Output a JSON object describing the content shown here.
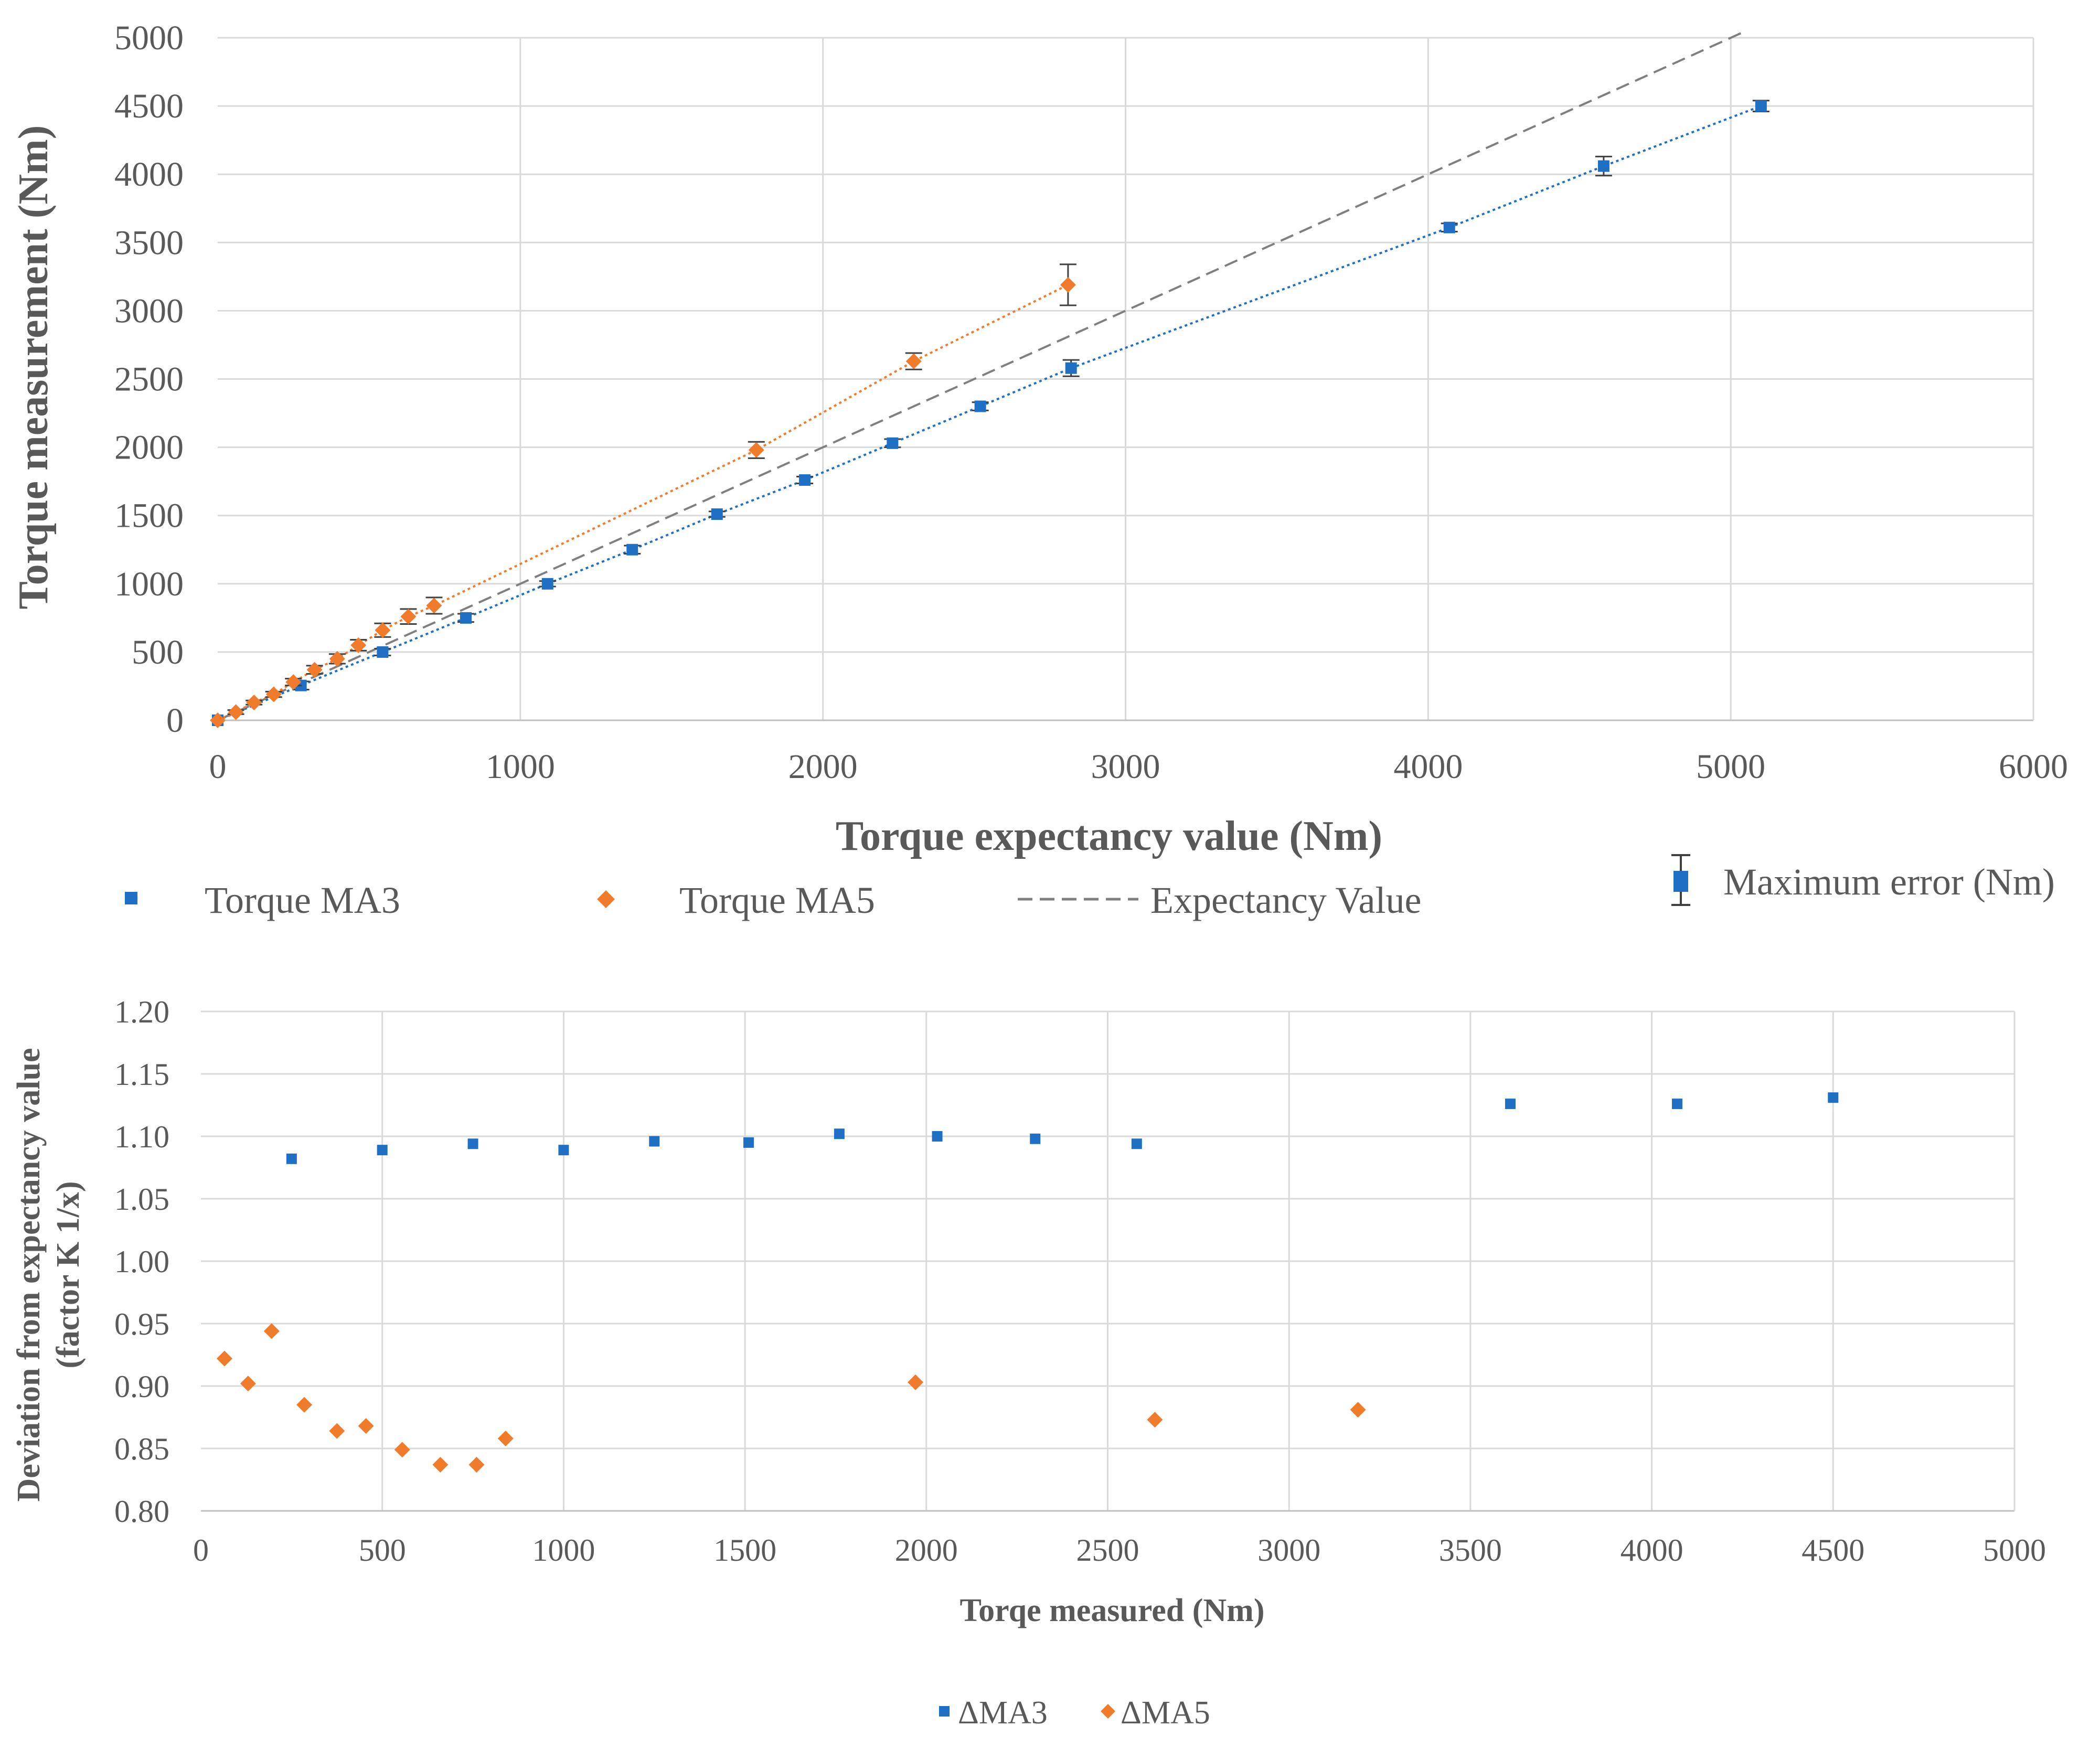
{
  "colors": {
    "ma3": "#1f6fc5",
    "ma5": "#f07b2a",
    "expectancy": "#7f7f7f",
    "errorbar": "#404040"
  },
  "chart_data": [
    {
      "type": "scatter",
      "xlabel": "Torque expectancy value (Nm)",
      "ylabel": "Torque measurement (Nm)",
      "xlim": [
        0,
        6000
      ],
      "ylim": [
        0,
        5000
      ],
      "xticks": [
        0,
        1000,
        2000,
        3000,
        4000,
        5000,
        6000
      ],
      "yticks": [
        0,
        500,
        1000,
        1500,
        2000,
        2500,
        3000,
        3500,
        4000,
        4500,
        5000
      ],
      "grid": true,
      "series": [
        {
          "name": "Torque MA3",
          "marker": "square",
          "x": [
            0,
            275,
            545,
            820,
            1090,
            1370,
            1650,
            1940,
            2230,
            2520,
            2820,
            4070,
            4580,
            5100
          ],
          "y": [
            0,
            255,
            500,
            750,
            1000,
            1250,
            1510,
            1760,
            2030,
            2300,
            2580,
            3610,
            4060,
            4500
          ],
          "error": [
            0,
            30,
            25,
            30,
            20,
            30,
            20,
            25,
            30,
            30,
            60,
            30,
            70,
            40
          ]
        },
        {
          "name": "Torque MA5",
          "marker": "diamond",
          "x": [
            0,
            60,
            120,
            185,
            250,
            320,
            395,
            465,
            545,
            630,
            715,
            1780,
            2300,
            2810
          ],
          "y": [
            0,
            60,
            130,
            190,
            280,
            370,
            450,
            550,
            660,
            760,
            840,
            1980,
            2630,
            3190
          ],
          "error": [
            0,
            15,
            15,
            20,
            25,
            30,
            35,
            40,
            50,
            55,
            60,
            60,
            60,
            150
          ]
        },
        {
          "name": "Expectancy Value",
          "style": "dashed-line",
          "x": [
            0,
            5040
          ],
          "y": [
            0,
            5040
          ]
        }
      ],
      "legend": [
        "Torque MA3",
        "Torque MA5",
        "Expectancy Value",
        "Maximum error (Nm)"
      ]
    },
    {
      "type": "scatter",
      "xlabel": "Torqe measured (Nm)",
      "ylabel_lines": [
        "Deviation from expectancy value",
        "(factor K 1/x)"
      ],
      "xlim": [
        0,
        5000
      ],
      "ylim": [
        0.8,
        1.2
      ],
      "xticks": [
        0,
        500,
        1000,
        1500,
        2000,
        2500,
        3000,
        3500,
        4000,
        4500,
        5000
      ],
      "yticks": [
        "0.80",
        "0.85",
        "0.90",
        "0.95",
        "1.00",
        "1.05",
        "1.10",
        "1.15",
        "1.20"
      ],
      "grid": true,
      "series": [
        {
          "name": "ΔMA3",
          "marker": "square",
          "x": [
            250,
            500,
            750,
            1000,
            1250,
            1510,
            1760,
            2030,
            2300,
            2580,
            3610,
            4070,
            4500
          ],
          "y": [
            1.082,
            1.089,
            1.094,
            1.089,
            1.096,
            1.095,
            1.102,
            1.1,
            1.098,
            1.094,
            1.126,
            1.126,
            1.131
          ]
        },
        {
          "name": "ΔMA5",
          "marker": "diamond",
          "x": [
            65,
            130,
            195,
            285,
            375,
            455,
            555,
            660,
            760,
            840,
            1970,
            2630,
            3190
          ],
          "y": [
            0.922,
            0.902,
            0.944,
            0.885,
            0.864,
            0.868,
            0.849,
            0.837,
            0.837,
            0.858,
            0.903,
            0.873,
            0.881
          ]
        }
      ],
      "legend": [
        "ΔMA3",
        "ΔMA5"
      ]
    }
  ]
}
